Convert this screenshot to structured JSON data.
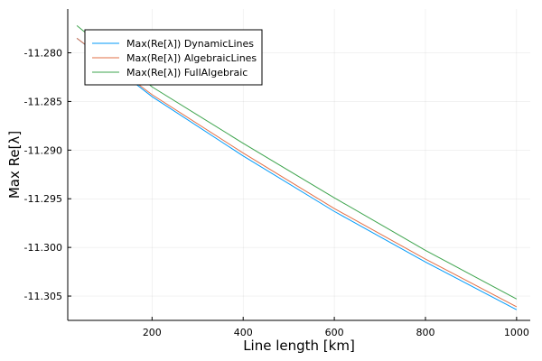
{
  "chart_data": {
    "type": "line",
    "xlabel": "Line length [km]",
    "ylabel": "Max Re[λ]",
    "xlim": [
      15,
      1030
    ],
    "ylim": [
      -11.3075,
      -11.2755
    ],
    "x_ticks": [
      200,
      400,
      600,
      800,
      1000
    ],
    "x_tick_labels": [
      "200",
      "400",
      "600",
      "800",
      "1000"
    ],
    "y_ticks": [
      -11.28,
      -11.285,
      -11.29,
      -11.295,
      -11.3,
      -11.305
    ],
    "y_tick_labels": [
      "-11.280",
      "-11.285",
      "-11.290",
      "-11.295",
      "-11.300",
      "-11.305"
    ],
    "grid": true,
    "legend_position": "top-left",
    "series": [
      {
        "name": "Max(Re[λ]) DynamicLines",
        "color": "#009af9",
        "x": [
          35,
          200,
          400,
          600,
          800,
          1000
        ],
        "y": [
          -11.2785,
          -11.2845,
          -11.2906,
          -11.2963,
          -11.3015,
          -11.3064
        ]
      },
      {
        "name": "Max(Re[λ]) AlgebraicLines",
        "color": "#e26f46",
        "x": [
          35,
          200,
          400,
          600,
          800,
          1000
        ],
        "y": [
          -11.2785,
          -11.2843,
          -11.2903,
          -11.296,
          -11.3012,
          -11.3061
        ]
      },
      {
        "name": "Max(Re[λ]) FullAlgebraic",
        "color": "#3da44d",
        "x": [
          35,
          200,
          400,
          600,
          800,
          1000
        ],
        "y": [
          -11.2772,
          -11.2835,
          -11.2893,
          -11.2949,
          -11.3003,
          -11.3053
        ]
      }
    ]
  }
}
